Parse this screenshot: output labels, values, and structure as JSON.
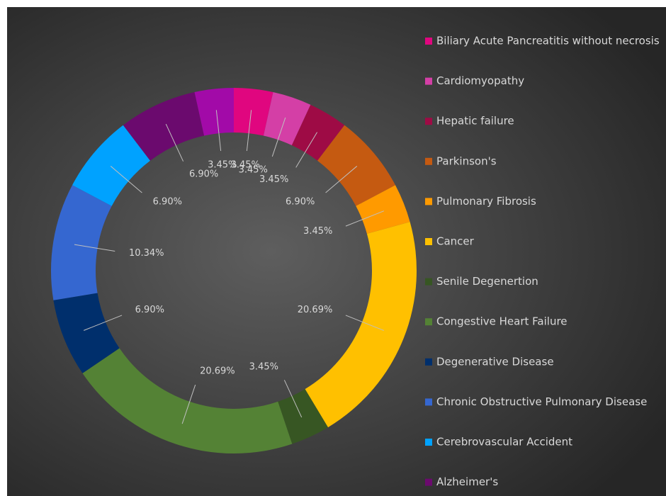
{
  "chart_data": {
    "type": "donut",
    "categories": [
      "Biliary Acute Pancreatitis without necrosis",
      "Cardiomyopathy",
      "Hepatic failure",
      "Parkinson's",
      "Pulmonary Fibrosis",
      "Cancer",
      "Senile Degenertion",
      "Congestive Heart Failure",
      "Degenerative Disease",
      "Chronic Obstructive Pulmonary Disease",
      "Cerebrovascular Accident",
      "Alzheimer's",
      null
    ],
    "values": [
      3.45,
      3.45,
      3.45,
      6.9,
      3.45,
      20.69,
      3.45,
      20.69,
      6.9,
      10.34,
      6.9,
      6.9,
      3.45
    ],
    "value_labels": [
      "3.45%",
      "3.45%",
      "3.45%",
      "6.90%",
      "3.45%",
      "20.69%",
      "3.45%",
      "20.69%",
      "6.90%",
      "10.34%",
      "6.90%",
      "6.90%",
      "3.45%"
    ],
    "colors": [
      "#e0067f",
      "#d43fa6",
      "#9e0b45",
      "#c55a11",
      "#ff9a00",
      "#ffc000",
      "#375623",
      "#548235",
      "#002f6c",
      "#3567d0",
      "#00a2ff",
      "#6b0a6e",
      "#a20aa8"
    ]
  }
}
